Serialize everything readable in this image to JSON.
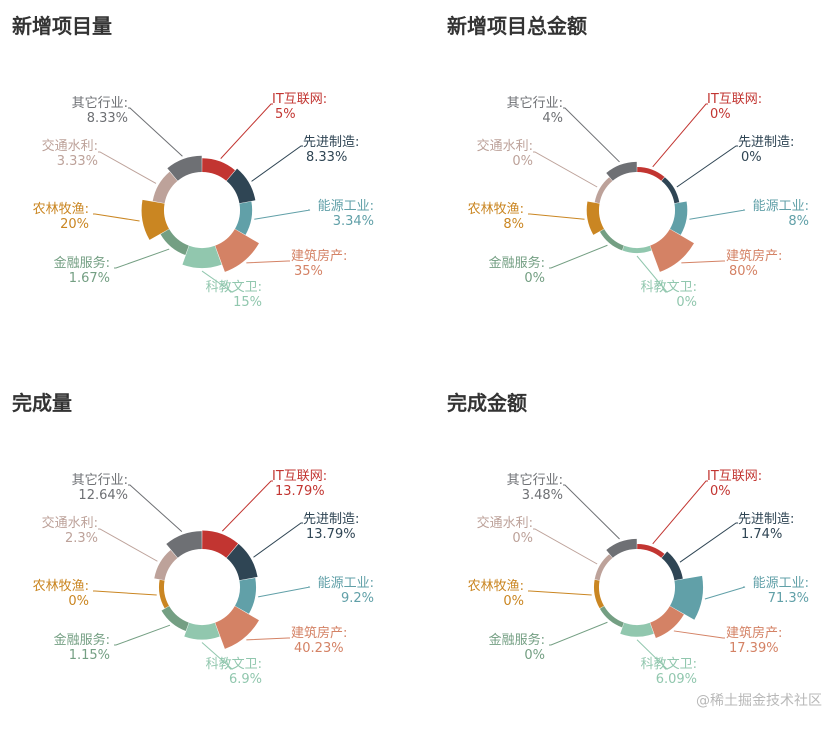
{
  "colors": [
    "#c23531",
    "#2f4554",
    "#61a0a8",
    "#d48265",
    "#91c7ae",
    "#749f83",
    "#ca8622",
    "#bda29a",
    "#6e7074"
  ],
  "categories": [
    "IT互联网",
    "先进制造",
    "能源工业",
    "建筑房产",
    "科教文卫",
    "金融服务",
    "农林牧渔",
    "交通水利",
    "其它行业"
  ],
  "watermark": "@稀土掘金技术社区",
  "chart_data": [
    {
      "type": "rose-pie",
      "title": "新增项目量",
      "values": [
        "5%",
        "8.33%",
        "3.34%",
        "35%",
        "15%",
        "1.67%",
        "20%",
        "3.33%",
        "8.33%"
      ]
    },
    {
      "type": "rose-pie",
      "title": "新增项目总金额",
      "values": [
        "0%",
        "0%",
        "8%",
        "80%",
        "0%",
        "0%",
        "8%",
        "0%",
        "4%"
      ]
    },
    {
      "type": "rose-pie",
      "title": "完成量",
      "values": [
        "13.79%",
        "13.79%",
        "9.2%",
        "40.23%",
        "6.9%",
        "1.15%",
        "0%",
        "2.3%",
        "12.64%"
      ]
    },
    {
      "type": "rose-pie",
      "title": "完成金额",
      "values": [
        "0%",
        "1.74%",
        "71.3%",
        "17.39%",
        "6.09%",
        "0%",
        "0%",
        "0%",
        "3.48%"
      ]
    }
  ]
}
